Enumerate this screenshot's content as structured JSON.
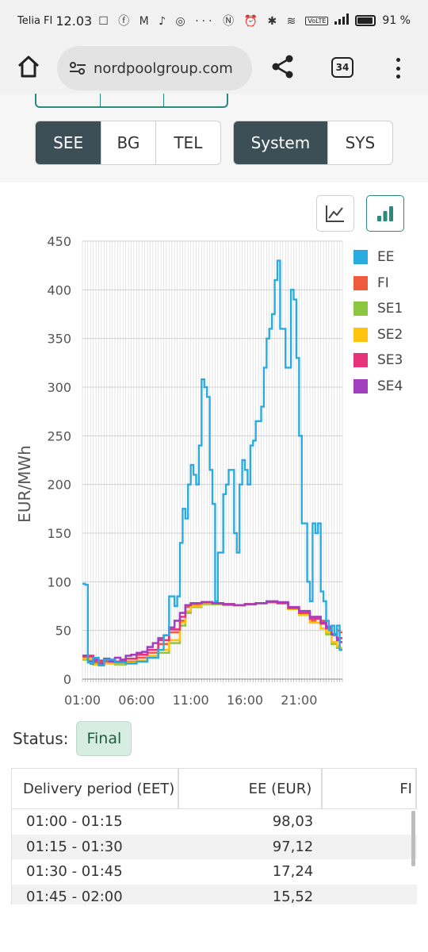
{
  "status_bar": {
    "carrier": "Telia FI",
    "time": "12.03",
    "notification_glyphs": "☐ ⓕ M ♪ ◎ ···",
    "system_glyphs": "Ⓝ ⏰ ✱ ≋",
    "volte": "VoLTE",
    "battery_percent": "91 %",
    "battery_level": 0.91
  },
  "browser": {
    "url": "nordpoolgroup.com",
    "tab_count": "34"
  },
  "area_selector": {
    "options": [
      "SEE",
      "BG",
      "TEL"
    ],
    "selected": "SEE"
  },
  "price_selector": {
    "options": [
      "System",
      "SYS"
    ],
    "selected": "System"
  },
  "view_toggle": {
    "options": [
      "line-chart",
      "bar-chart"
    ],
    "selected": "bar-chart"
  },
  "chart_data": {
    "type": "line",
    "ylabel": "EUR/MWh",
    "ylim": [
      0,
      450
    ],
    "yticks": [
      0,
      50,
      100,
      150,
      200,
      250,
      300,
      350,
      400,
      450
    ],
    "xticks": [
      "01:00",
      "06:00",
      "11:00",
      "16:00",
      "21:00"
    ],
    "x_start_hour": 1,
    "x_end_hour": 25,
    "grid": true,
    "legend_position": "right",
    "series": [
      {
        "name": "EE",
        "color": "#29abe2",
        "points": [
          [
            1,
            98
          ],
          [
            1.25,
            97
          ],
          [
            1.5,
            17
          ],
          [
            1.75,
            15.5
          ],
          [
            2,
            22
          ],
          [
            2.5,
            14
          ],
          [
            3,
            20
          ],
          [
            4,
            17
          ],
          [
            5,
            16
          ],
          [
            6,
            18
          ],
          [
            7,
            22
          ],
          [
            8,
            30
          ],
          [
            8.5,
            45
          ],
          [
            9,
            85
          ],
          [
            9.5,
            75
          ],
          [
            9.75,
            85
          ],
          [
            10,
            140
          ],
          [
            10.25,
            175
          ],
          [
            10.5,
            165
          ],
          [
            10.75,
            200
          ],
          [
            11,
            220
          ],
          [
            11.25,
            210
          ],
          [
            11.5,
            200
          ],
          [
            11.75,
            240
          ],
          [
            12,
            308
          ],
          [
            12.25,
            300
          ],
          [
            12.5,
            290
          ],
          [
            12.75,
            215
          ],
          [
            13,
            180
          ],
          [
            13.25,
            80
          ],
          [
            13.5,
            130
          ],
          [
            14,
            190
          ],
          [
            14.25,
            200
          ],
          [
            14.5,
            215
          ],
          [
            14.75,
            215
          ],
          [
            15,
            150
          ],
          [
            15.25,
            130
          ],
          [
            15.5,
            200
          ],
          [
            15.75,
            225
          ],
          [
            16,
            215
          ],
          [
            16.25,
            200
          ],
          [
            16.5,
            240
          ],
          [
            16.75,
            245
          ],
          [
            17,
            265
          ],
          [
            17.25,
            265
          ],
          [
            17.5,
            280
          ],
          [
            17.75,
            320
          ],
          [
            18,
            350
          ],
          [
            18.25,
            360
          ],
          [
            18.5,
            375
          ],
          [
            18.75,
            410
          ],
          [
            19,
            430
          ],
          [
            19.25,
            360
          ],
          [
            19.5,
            360
          ],
          [
            19.75,
            320
          ],
          [
            20,
            320
          ],
          [
            20.25,
            400
          ],
          [
            20.5,
            390
          ],
          [
            20.75,
            330
          ],
          [
            21,
            250
          ],
          [
            21.25,
            160
          ],
          [
            21.5,
            160
          ],
          [
            21.75,
            100
          ],
          [
            22,
            80
          ],
          [
            22.25,
            160
          ],
          [
            22.5,
            150
          ],
          [
            22.75,
            160
          ],
          [
            23,
            90
          ],
          [
            23.25,
            80
          ],
          [
            23.5,
            60
          ],
          [
            23.75,
            50
          ],
          [
            24,
            55
          ],
          [
            24.25,
            45
          ],
          [
            24.5,
            55
          ],
          [
            24.75,
            30
          ]
        ]
      },
      {
        "name": "FI",
        "color": "#f05a3e",
        "points": [
          [
            1,
            23
          ],
          [
            2,
            17
          ],
          [
            3,
            18
          ],
          [
            4,
            16
          ],
          [
            5,
            18
          ],
          [
            6,
            22
          ],
          [
            7,
            27
          ],
          [
            8,
            36
          ],
          [
            9,
            48
          ],
          [
            10,
            60
          ],
          [
            10.5,
            74
          ],
          [
            11,
            77
          ],
          [
            12,
            79
          ],
          [
            13,
            78
          ],
          [
            14,
            77
          ],
          [
            15,
            76
          ],
          [
            16,
            77
          ],
          [
            17,
            78
          ],
          [
            18,
            79
          ],
          [
            19,
            78
          ],
          [
            20,
            72
          ],
          [
            21,
            66
          ],
          [
            22,
            60
          ],
          [
            22.5,
            64
          ],
          [
            23,
            60
          ],
          [
            23.5,
            54
          ],
          [
            24,
            45
          ],
          [
            24.5,
            50
          ],
          [
            24.75,
            48
          ]
        ]
      },
      {
        "name": "SE1",
        "color": "#8dc63f",
        "points": [
          [
            1,
            20
          ],
          [
            2,
            15
          ],
          [
            3,
            16
          ],
          [
            4,
            15
          ],
          [
            5,
            16
          ],
          [
            6,
            18
          ],
          [
            7,
            22
          ],
          [
            8,
            27
          ],
          [
            9,
            37
          ],
          [
            10,
            55
          ],
          [
            10.5,
            68
          ],
          [
            11,
            74
          ],
          [
            12,
            77
          ],
          [
            13,
            77
          ],
          [
            14,
            76
          ],
          [
            15,
            76
          ],
          [
            16,
            77
          ],
          [
            17,
            78
          ],
          [
            18,
            79
          ],
          [
            19,
            78
          ],
          [
            20,
            72
          ],
          [
            21,
            66
          ],
          [
            22,
            58
          ],
          [
            23,
            52
          ],
          [
            23.5,
            46
          ],
          [
            24,
            36
          ],
          [
            24.5,
            32
          ],
          [
            24.75,
            30
          ]
        ]
      },
      {
        "name": "SE2",
        "color": "#ffc20e",
        "points": [
          [
            1,
            21
          ],
          [
            2,
            15
          ],
          [
            3,
            16
          ],
          [
            4,
            16
          ],
          [
            5,
            17
          ],
          [
            6,
            19
          ],
          [
            7,
            24
          ],
          [
            8,
            30
          ],
          [
            9,
            40
          ],
          [
            10,
            58
          ],
          [
            10.5,
            70
          ],
          [
            11,
            75
          ],
          [
            12,
            78
          ],
          [
            13,
            78
          ],
          [
            14,
            77
          ],
          [
            15,
            76
          ],
          [
            16,
            77
          ],
          [
            17,
            78
          ],
          [
            18,
            79
          ],
          [
            19,
            78
          ],
          [
            20,
            72
          ],
          [
            21,
            66
          ],
          [
            22,
            58
          ],
          [
            23,
            52
          ],
          [
            23.5,
            48
          ],
          [
            24,
            38
          ],
          [
            24.5,
            34
          ],
          [
            24.75,
            32
          ]
        ]
      },
      {
        "name": "SE3",
        "color": "#e6337a",
        "points": [
          [
            1,
            24
          ],
          [
            2,
            19
          ],
          [
            3,
            20
          ],
          [
            4,
            18
          ],
          [
            5,
            21
          ],
          [
            6,
            25
          ],
          [
            7,
            30
          ],
          [
            8,
            40
          ],
          [
            9,
            51
          ],
          [
            10,
            64
          ],
          [
            10.5,
            76
          ],
          [
            11,
            78
          ],
          [
            12,
            79
          ],
          [
            13,
            78
          ],
          [
            14,
            77
          ],
          [
            15,
            76
          ],
          [
            16,
            77
          ],
          [
            17,
            78
          ],
          [
            18,
            79
          ],
          [
            19,
            78
          ],
          [
            20,
            73
          ],
          [
            21,
            68
          ],
          [
            22,
            62
          ],
          [
            23,
            57
          ],
          [
            23.5,
            52
          ],
          [
            24,
            46
          ],
          [
            24.5,
            42
          ],
          [
            24.75,
            42
          ]
        ]
      },
      {
        "name": "SE4",
        "color": "#a23ebf",
        "points": [
          [
            1,
            24
          ],
          [
            1.5,
            18
          ],
          [
            2,
            20
          ],
          [
            2.5,
            16
          ],
          [
            3,
            21
          ],
          [
            3.5,
            18
          ],
          [
            4,
            22
          ],
          [
            4.5,
            20
          ],
          [
            5,
            24
          ],
          [
            5.5,
            25
          ],
          [
            6,
            27
          ],
          [
            6.5,
            28
          ],
          [
            7,
            33
          ],
          [
            7.5,
            37
          ],
          [
            8,
            42
          ],
          [
            8.5,
            45
          ],
          [
            9,
            53
          ],
          [
            9.5,
            60
          ],
          [
            10,
            68
          ],
          [
            10.5,
            76
          ],
          [
            11,
            78
          ],
          [
            12,
            79
          ],
          [
            13,
            78
          ],
          [
            14,
            77
          ],
          [
            15,
            76
          ],
          [
            16,
            77
          ],
          [
            17,
            78
          ],
          [
            18,
            80
          ],
          [
            19,
            79
          ],
          [
            20,
            74
          ],
          [
            21,
            70
          ],
          [
            22,
            64
          ],
          [
            23,
            58
          ],
          [
            23.5,
            54
          ],
          [
            24,
            46
          ],
          [
            24.5,
            40
          ],
          [
            24.75,
            38
          ]
        ]
      }
    ]
  },
  "status": {
    "label": "Status:",
    "value": "Final"
  },
  "table": {
    "headers": [
      "Delivery period (EET)",
      "EE (EUR)",
      "FI"
    ],
    "rows": [
      [
        "01:00 - 01:15",
        "98,03",
        ""
      ],
      [
        "01:15 - 01:30",
        "97,12",
        ""
      ],
      [
        "01:30 - 01:45",
        "17,24",
        ""
      ],
      [
        "01:45 - 02:00",
        "15,52",
        ""
      ]
    ]
  }
}
